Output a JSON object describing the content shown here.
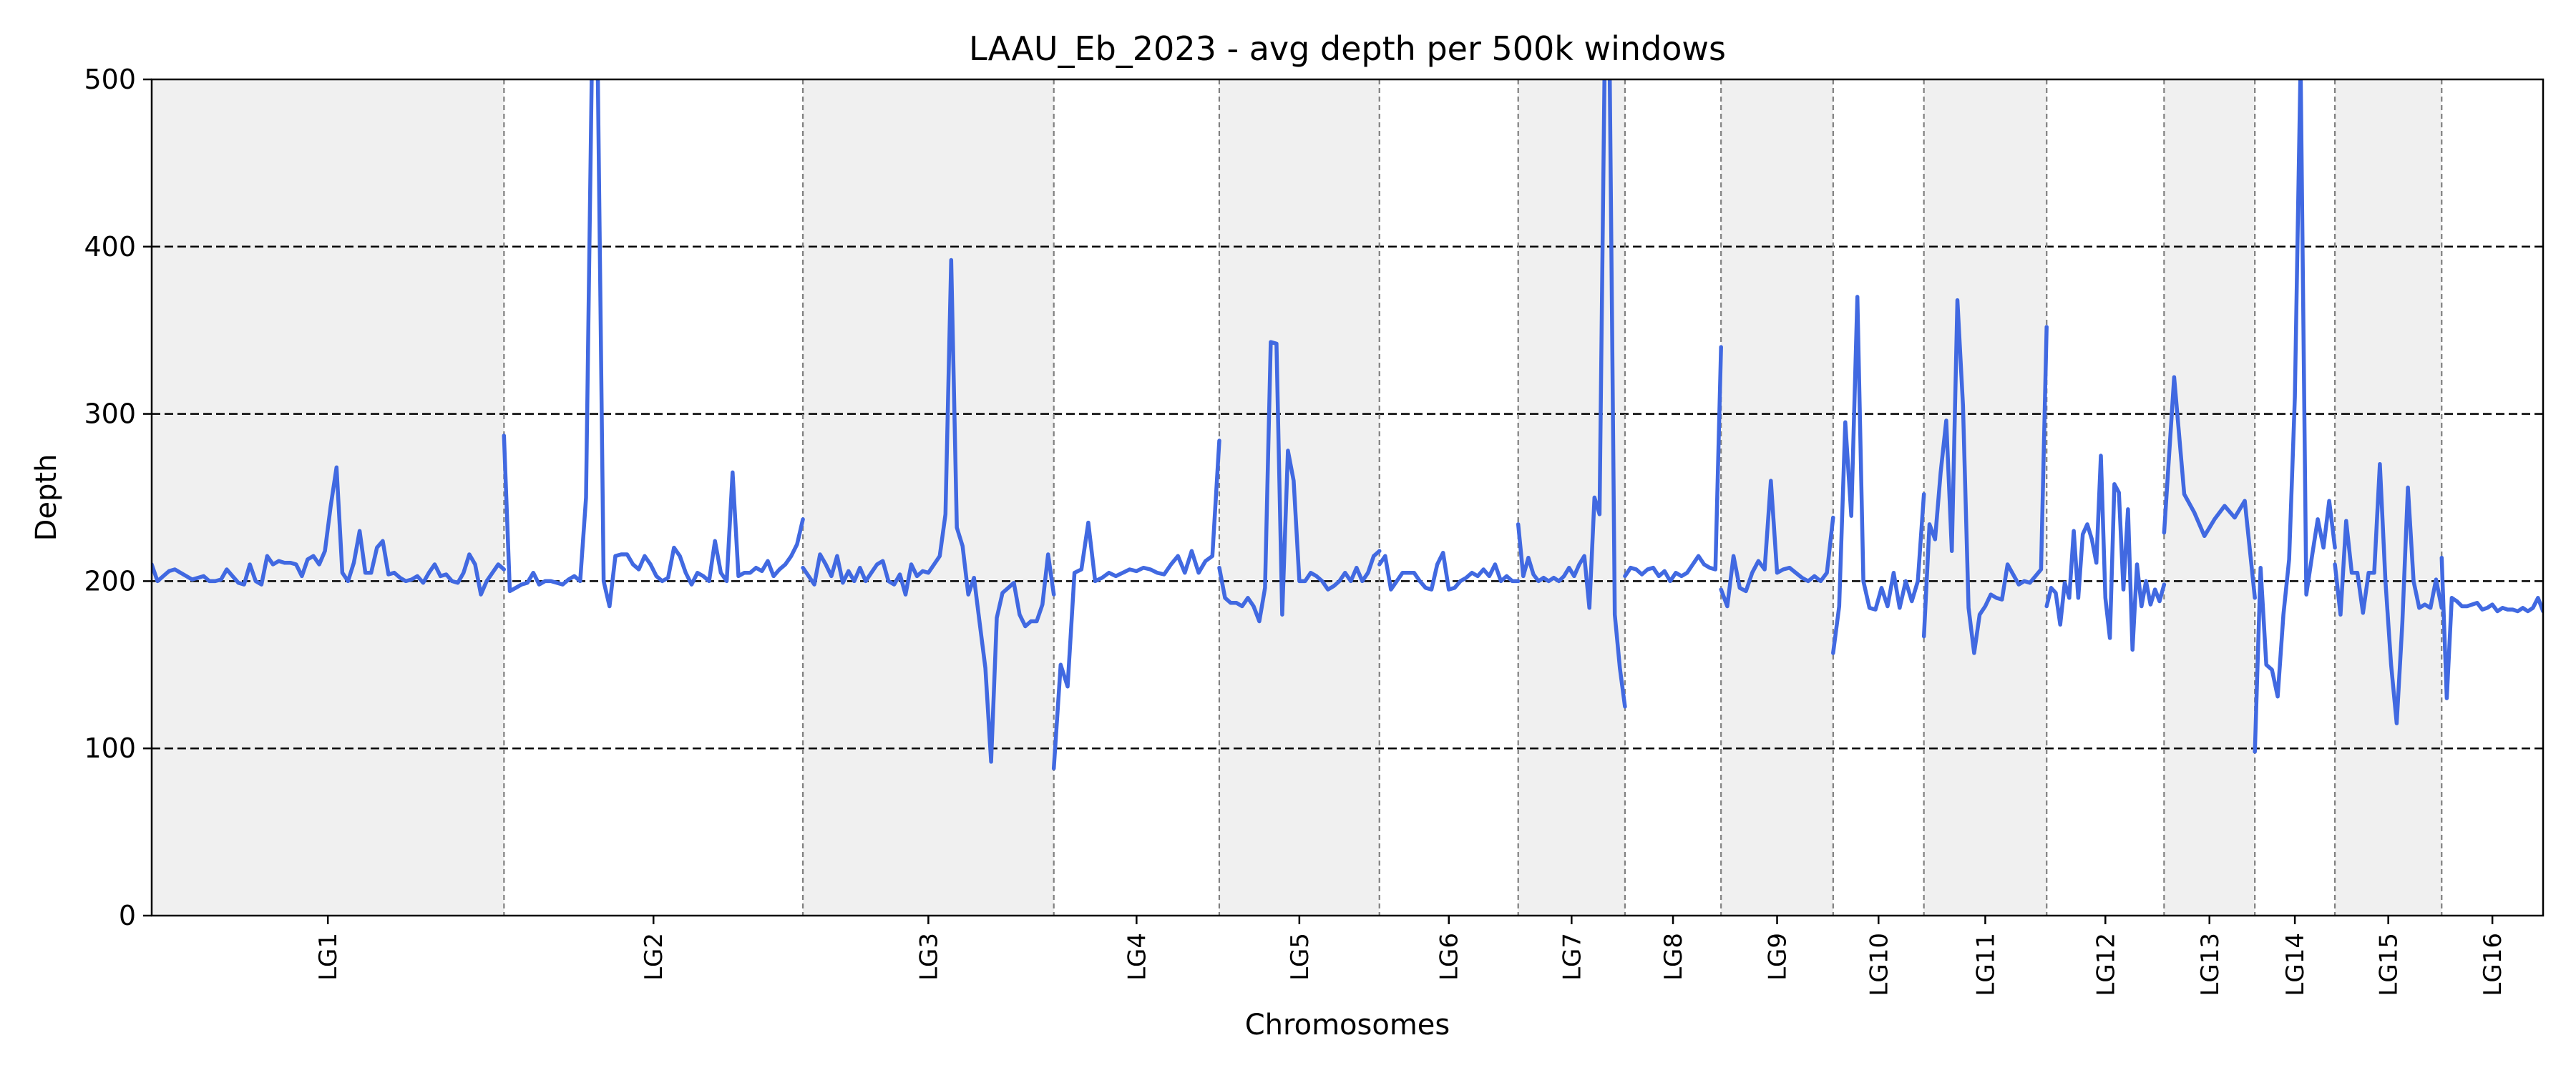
{
  "chart_data": {
    "type": "line",
    "title": "LAAU_Eb_2023 - avg depth per 500k windows",
    "xlabel": "Chromosomes",
    "ylabel": "Depth",
    "ylim": [
      0,
      500
    ],
    "xlim": [
      0,
      448
    ],
    "yticks": [
      0,
      100,
      200,
      300,
      400,
      500
    ],
    "reference_lines": [
      100,
      200,
      300,
      400
    ],
    "line_color": "#4169e1",
    "band_color": "#f0f0f0",
    "chromosomes": [
      {
        "name": "LG1",
        "start": 0,
        "end": 66
      },
      {
        "name": "LG2",
        "start": 66,
        "end": 122
      },
      {
        "name": "LG3",
        "start": 122,
        "end": 169
      },
      {
        "name": "LG4",
        "start": 169,
        "end": 200
      },
      {
        "name": "LG5",
        "start": 200,
        "end": 230
      },
      {
        "name": "LG6",
        "start": 230,
        "end": 256
      },
      {
        "name": "LG7",
        "start": 256,
        "end": 276
      },
      {
        "name": "LG8",
        "start": 276,
        "end": 294
      },
      {
        "name": "LG9",
        "start": 294,
        "end": 315
      },
      {
        "name": "LG10",
        "start": 315,
        "end": 332
      },
      {
        "name": "LG11",
        "start": 332,
        "end": 355
      },
      {
        "name": "LG12",
        "start": 355,
        "end": 377
      },
      {
        "name": "LG13",
        "start": 377,
        "end": 394
      },
      {
        "name": "LG14",
        "start": 394,
        "end": 409
      },
      {
        "name": "LG15",
        "start": 409,
        "end": 429
      },
      {
        "name": "LG16",
        "start": 429,
        "end": 448
      }
    ],
    "series": [
      {
        "chromosome": "LG1",
        "values": [
          210,
          200,
          203,
          206,
          207,
          205,
          203,
          201,
          202,
          203,
          200,
          200,
          201,
          207,
          203,
          199,
          198,
          210,
          200,
          198,
          215,
          210,
          212,
          211,
          211,
          210,
          203,
          213,
          215,
          210,
          218,
          245,
          268,
          205,
          200,
          211,
          230,
          205,
          205,
          220,
          224,
          204,
          205,
          202,
          200,
          201,
          203,
          199,
          205,
          210,
          203,
          204,
          200,
          199,
          205,
          216,
          210,
          192,
          200,
          205,
          210,
          207
        ]
      },
      {
        "chromosome": "LG2",
        "values": [
          287,
          194,
          196,
          198,
          199,
          205,
          198,
          200,
          200,
          199,
          198,
          201,
          203,
          200,
          250,
          510,
          505,
          200,
          185,
          215,
          216,
          216,
          210,
          207,
          215,
          210,
          203,
          200,
          202,
          220,
          215,
          205,
          198,
          205,
          203,
          200,
          224,
          205,
          200,
          265,
          203,
          205,
          205,
          208,
          206,
          212,
          203,
          207,
          210,
          215,
          222,
          237
        ]
      },
      {
        "chromosome": "LG3",
        "values": [
          208,
          203,
          198,
          216,
          210,
          203,
          215,
          199,
          206,
          200,
          208,
          200,
          205,
          210,
          212,
          200,
          198,
          204,
          192,
          210,
          203,
          206,
          205,
          210,
          215,
          240,
          392,
          232,
          221,
          192,
          202,
          175,
          148,
          92,
          178,
          193,
          196,
          199,
          180,
          173,
          176,
          176,
          186,
          216,
          192
        ]
      },
      {
        "chromosome": "LG4",
        "values": [
          88,
          150,
          137,
          205,
          207,
          235,
          200,
          202,
          205,
          203,
          205,
          207,
          206,
          208,
          207,
          205,
          204,
          210,
          215,
          205,
          218,
          205,
          212,
          215,
          284
        ]
      },
      {
        "chromosome": "LG5",
        "values": [
          208,
          190,
          187,
          187,
          185,
          190,
          185,
          176,
          196,
          343,
          342,
          180,
          278,
          260,
          200,
          200,
          205,
          203,
          200,
          195,
          197,
          200,
          205,
          200,
          208,
          200,
          205,
          215,
          218
        ]
      },
      {
        "chromosome": "LG6",
        "values": [
          210,
          215,
          195,
          200,
          205,
          205,
          205,
          200,
          196,
          195,
          210,
          217,
          195,
          196,
          200,
          202,
          205,
          203,
          207,
          203,
          210,
          200,
          203,
          200,
          200
        ]
      },
      {
        "chromosome": "LG7",
        "values": [
          234,
          203,
          214,
          204,
          200,
          202,
          200,
          202,
          200,
          203,
          208,
          203,
          210,
          215,
          184,
          250,
          240,
          510,
          505,
          180,
          148,
          125
        ]
      },
      {
        "chromosome": "LG8",
        "values": [
          203,
          208,
          207,
          204,
          207,
          208,
          203,
          206,
          200,
          205,
          203,
          205,
          210,
          215,
          210,
          208,
          207,
          340
        ]
      },
      {
        "chromosome": "LG9",
        "values": [
          195,
          185,
          215,
          196,
          194,
          205,
          212,
          207,
          260,
          205,
          207,
          208,
          205,
          202,
          200,
          203,
          200,
          205,
          238
        ]
      },
      {
        "chromosome": "LG10",
        "values": [
          157,
          185,
          295,
          239,
          370,
          200,
          184,
          183,
          196,
          185,
          205,
          184,
          200,
          188,
          200,
          252
        ]
      },
      {
        "chromosome": "LG11",
        "values": [
          167,
          234,
          225,
          265,
          296,
          218,
          368,
          305,
          184,
          157,
          180,
          185,
          192,
          190,
          189,
          210,
          204,
          198,
          200,
          199,
          203,
          207,
          352
        ]
      },
      {
        "chromosome": "LG12",
        "values": [
          185,
          196,
          193,
          174,
          199,
          190,
          230,
          190,
          228,
          234,
          225,
          211,
          275,
          190,
          166,
          258,
          253,
          195,
          243,
          159,
          210,
          185,
          200,
          186,
          195,
          188,
          198
        ]
      },
      {
        "chromosome": "LG13",
        "values": [
          229,
          322,
          252,
          241,
          227,
          237,
          245,
          238,
          248,
          190
        ]
      },
      {
        "chromosome": "LG14",
        "values": [
          98,
          208,
          150,
          147,
          131,
          180,
          213,
          310,
          510,
          192,
          215,
          237,
          220,
          248,
          220
        ]
      },
      {
        "chromosome": "LG15",
        "values": [
          210,
          180,
          236,
          205,
          205,
          181,
          205,
          205,
          270,
          200,
          150,
          115,
          175,
          256,
          200,
          184,
          186,
          184,
          201,
          184
        ]
      },
      {
        "chromosome": "LG16",
        "values": [
          214,
          130,
          190,
          188,
          185,
          185,
          186,
          187,
          183,
          184,
          186,
          182,
          184,
          183,
          183,
          182,
          184,
          182,
          184,
          190,
          182
        ]
      }
    ]
  }
}
